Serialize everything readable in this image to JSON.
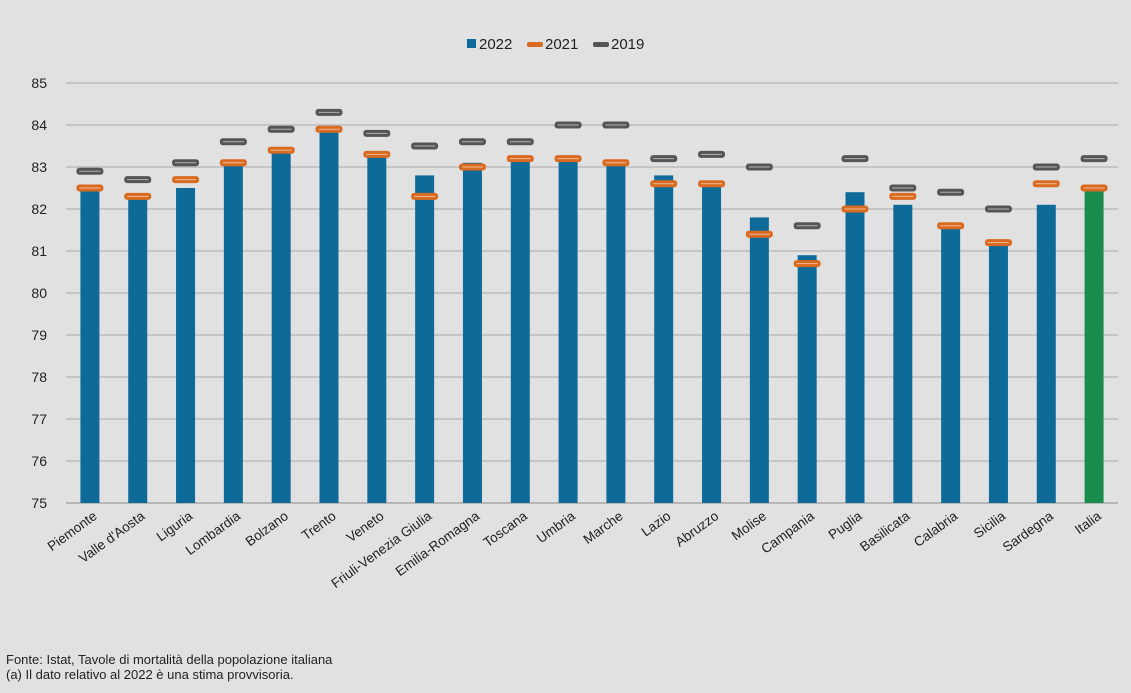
{
  "chart_data": {
    "type": "bar",
    "title": "",
    "xlabel": "",
    "ylabel": "",
    "ylim": [
      75,
      85
    ],
    "yticks": [
      75,
      76,
      77,
      78,
      79,
      80,
      81,
      82,
      83,
      84,
      85
    ],
    "grid": true,
    "legend_position": "top-center",
    "categories": [
      "Piemonte",
      "Valle d'Aosta",
      "Liguria",
      "Lombardia",
      "Bolzano",
      "Trento",
      "Veneto",
      "Friuli-Venezia Giulia",
      "Emilia-Romagna",
      "Toscana",
      "Umbria",
      "Marche",
      "Lazio",
      "Abruzzo",
      "Molise",
      "Campania",
      "Puglia",
      "Basilicata",
      "Calabria",
      "Sicilia",
      "Sardegna",
      "Italia"
    ],
    "series": [
      {
        "name": "2022",
        "kind": "bar",
        "color": "#0e6a99",
        "highlight_color": "#1a8c4e",
        "highlight_category": "Italia",
        "values": [
          82.5,
          82.3,
          82.5,
          83.1,
          83.4,
          83.9,
          83.3,
          82.8,
          83.1,
          83.2,
          83.2,
          83.1,
          82.8,
          82.6,
          81.8,
          80.9,
          82.4,
          82.1,
          81.6,
          81.2,
          82.1,
          82.5
        ]
      },
      {
        "name": "2021",
        "kind": "marker",
        "color": "#d96a1f",
        "values": [
          82.5,
          82.3,
          82.7,
          83.1,
          83.4,
          83.9,
          83.3,
          82.3,
          83.0,
          83.2,
          83.2,
          83.1,
          82.6,
          82.6,
          81.4,
          80.7,
          82.0,
          82.3,
          81.6,
          81.2,
          82.6,
          82.5
        ]
      },
      {
        "name": "2019",
        "kind": "marker",
        "color": "#555555",
        "values": [
          82.9,
          82.7,
          83.1,
          83.6,
          83.9,
          84.3,
          83.8,
          83.5,
          83.6,
          83.6,
          84.0,
          84.0,
          83.2,
          83.3,
          83.0,
          81.6,
          83.2,
          82.5,
          82.4,
          82.0,
          83.0,
          83.2
        ]
      }
    ]
  },
  "footnotes": {
    "source": "Fonte: Istat, Tavole di mortalità della popolazione italiana",
    "note": "(a) Il dato relativo al 2022 è una stima provvisoria."
  }
}
